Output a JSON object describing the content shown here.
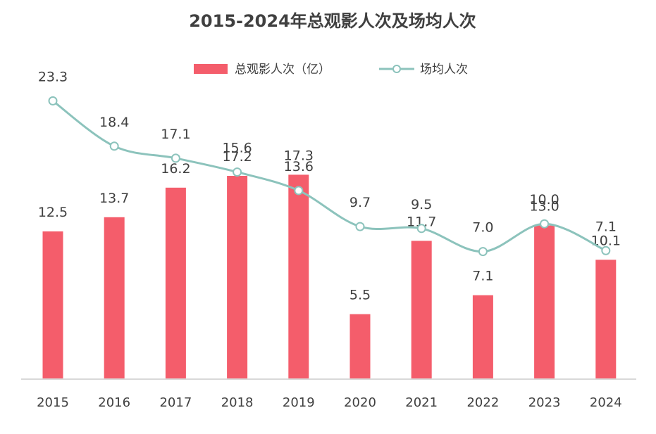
{
  "chart_data": {
    "type": "bar+line",
    "title": "2015-2024年总观影人次及场均人次",
    "categories": [
      "2015",
      "2016",
      "2017",
      "2018",
      "2019",
      "2020",
      "2021",
      "2022",
      "2023",
      "2024"
    ],
    "series": [
      {
        "name": "总观影人次（亿）",
        "type": "bar",
        "color": "#f45d6b",
        "values": [
          12.5,
          13.7,
          16.2,
          17.2,
          17.3,
          5.5,
          11.7,
          7.1,
          13.0,
          10.1
        ],
        "labels": [
          "12.5",
          "13.7",
          "16.2",
          "17.2",
          "17.3",
          "5.5",
          "11.7",
          "7.1",
          "13.0",
          "10.1"
        ]
      },
      {
        "name": "场均人次",
        "type": "line",
        "color": "#8cc3bc",
        "values": [
          23.3,
          18.4,
          17.1,
          15.6,
          13.6,
          9.7,
          9.5,
          7.0,
          10.0,
          7.1
        ],
        "labels": [
          "23.3",
          "18.4",
          "17.1",
          "15.6",
          "13.6",
          "9.7",
          "9.5",
          "7.0",
          "10.0",
          "7.1"
        ]
      }
    ],
    "legend_position": "top-center",
    "grid": false,
    "axis_color": "#d9d9d9"
  }
}
